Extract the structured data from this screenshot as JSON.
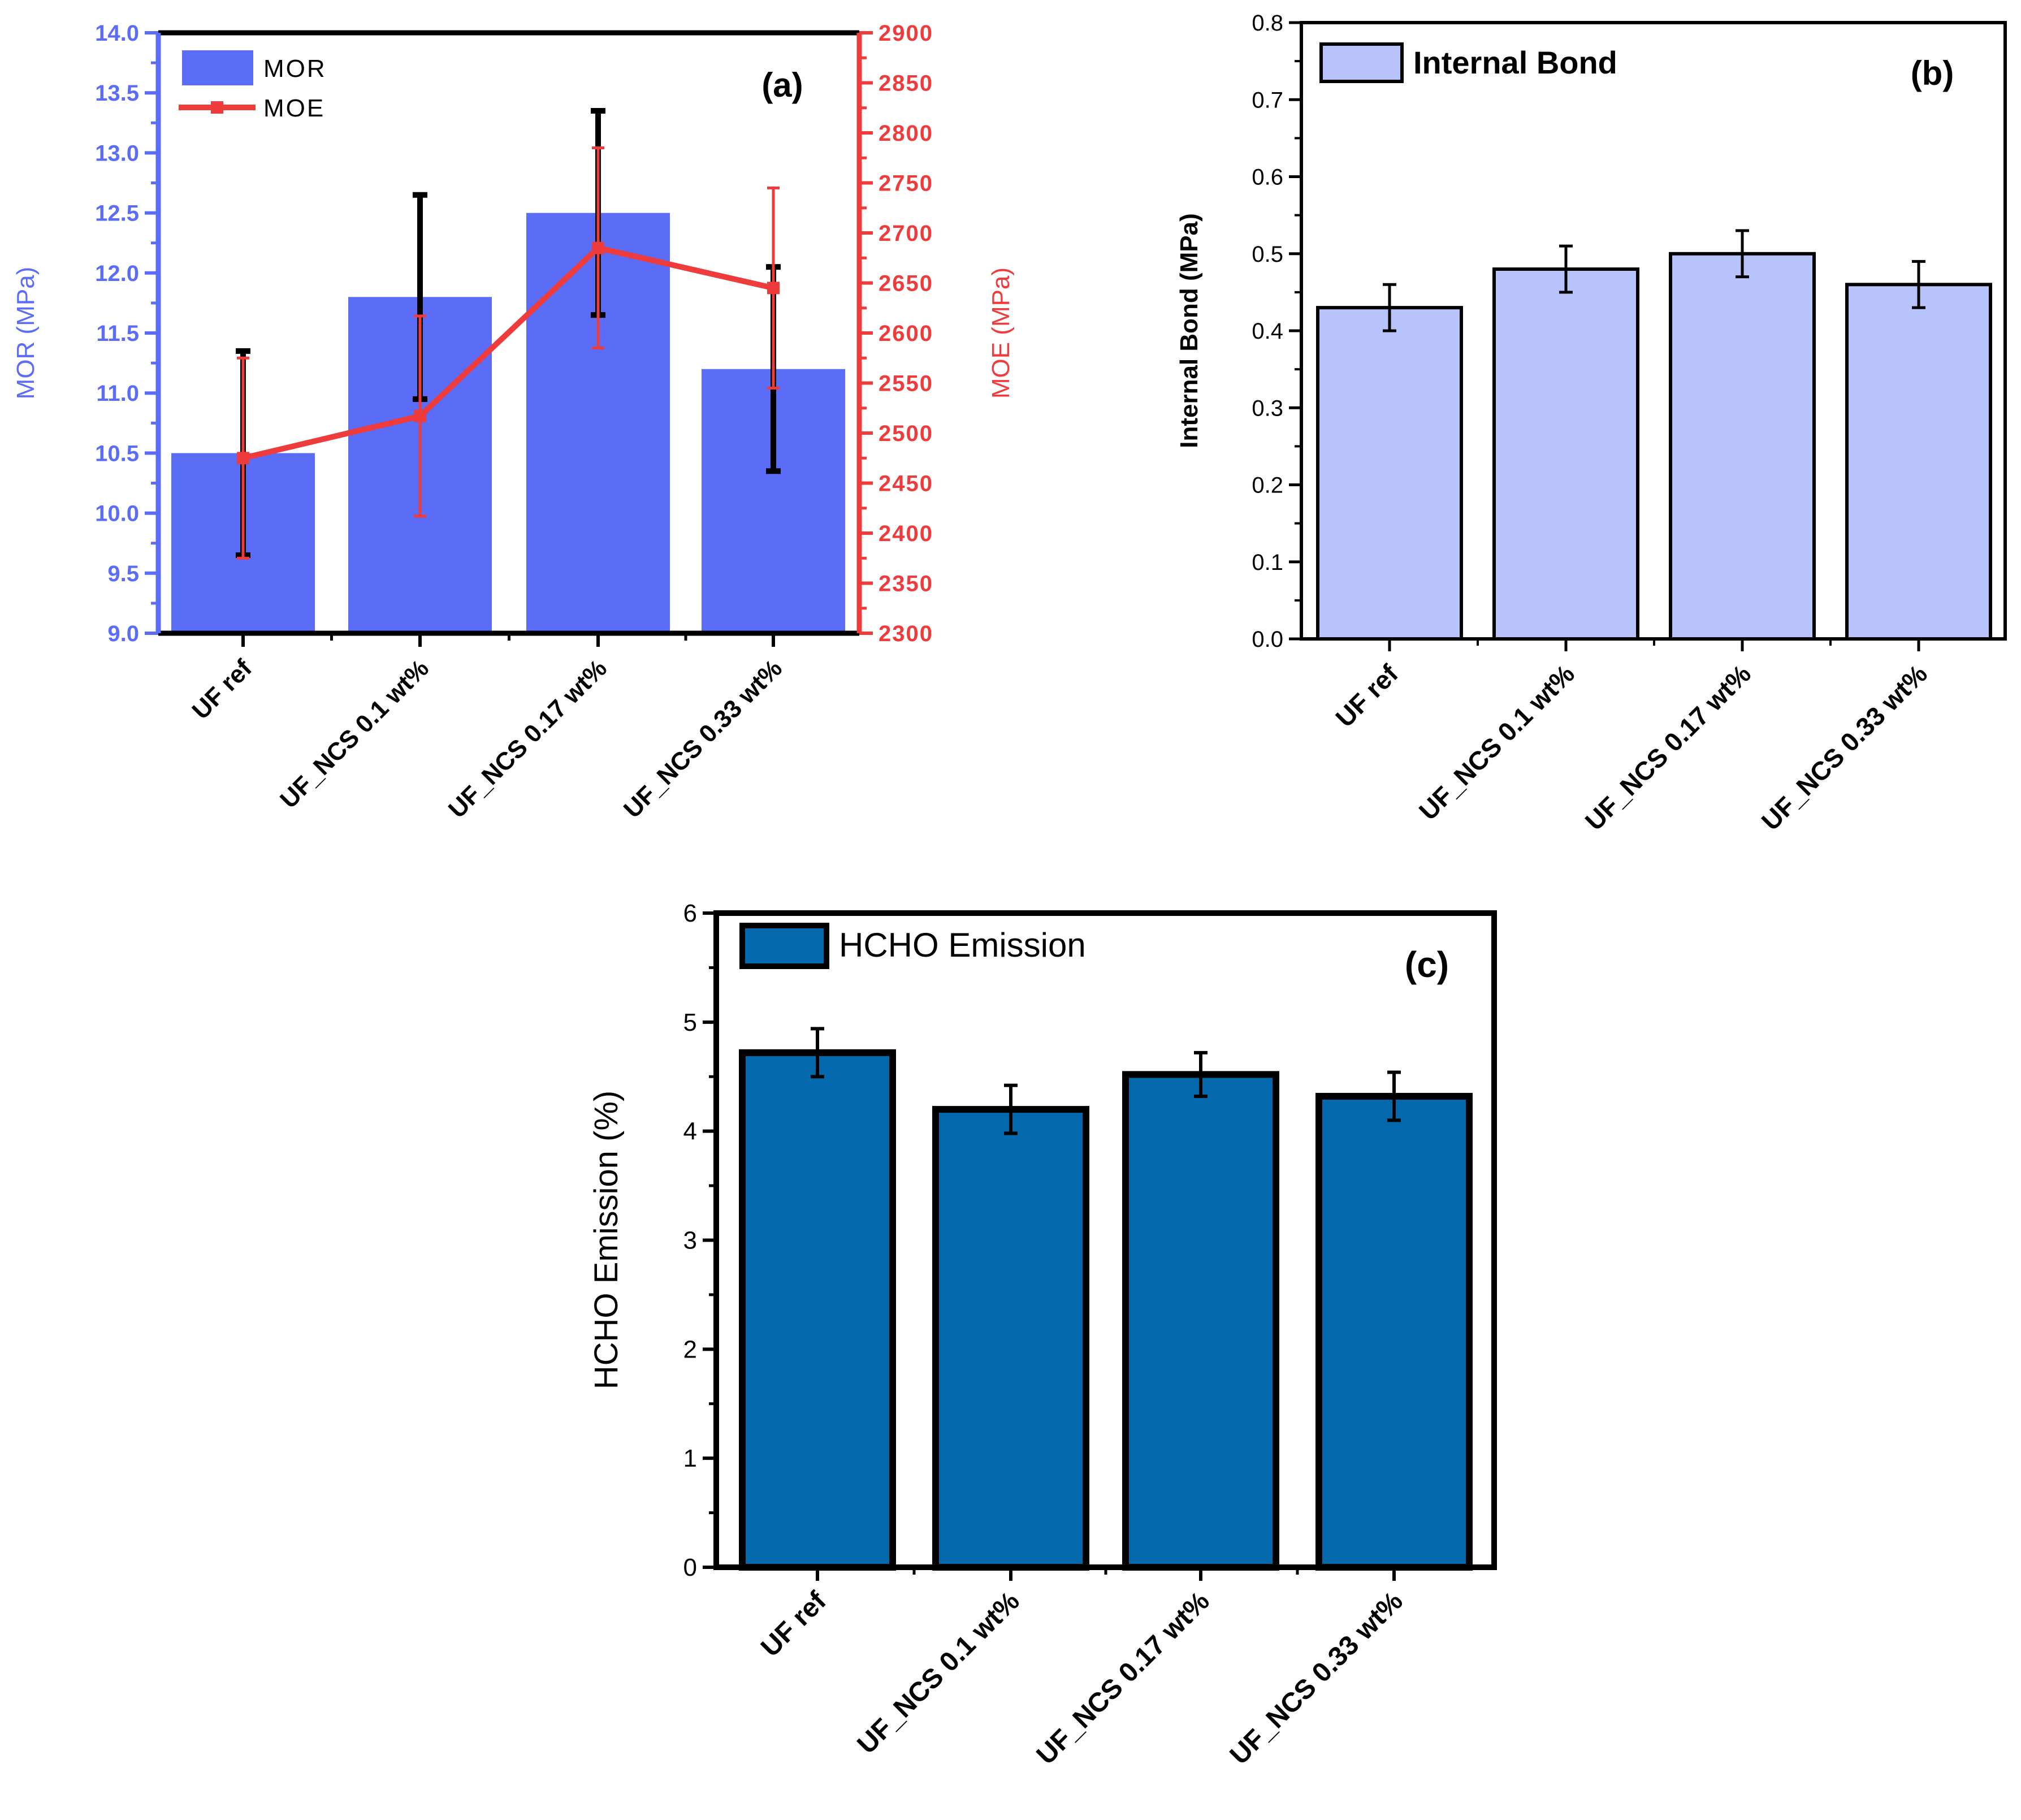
{
  "chart_data": [
    {
      "type": "bar+line",
      "panel_label": "(a)",
      "categories": [
        "UF ref",
        "UF_NCS 0.1 wt%",
        "UF_NCS 0.17 wt%",
        "UF_NCS 0.33 wt%"
      ],
      "left_axis": {
        "label": "MOR (MPa)",
        "ylim": [
          9.0,
          14.0
        ],
        "ticks": [
          "9.0",
          "9.5",
          "10.0",
          "10.5",
          "11.0",
          "11.5",
          "12.0",
          "12.5",
          "13.0",
          "13.5",
          "14.0"
        ]
      },
      "right_axis": {
        "label": "MOE (MPa)",
        "ylim": [
          2300,
          2900
        ],
        "ticks": [
          "2300",
          "2350",
          "2400",
          "2450",
          "2500",
          "2550",
          "2600",
          "2650",
          "2700",
          "2750",
          "2800",
          "2850",
          "2900"
        ]
      },
      "series": [
        {
          "name": "MOR",
          "kind": "bar",
          "axis": "left",
          "values": [
            10.5,
            11.8,
            12.5,
            11.2
          ],
          "errors": [
            0.85,
            0.85,
            0.85,
            0.85
          ]
        },
        {
          "name": "MOE",
          "kind": "line",
          "axis": "right",
          "values": [
            2475,
            2517,
            2685,
            2645
          ],
          "errors": [
            100,
            100,
            100,
            100
          ]
        }
      ],
      "legend": "top-left",
      "colors": {
        "bar": "#5b6cf6",
        "line": "#ee3b3b",
        "mor_error": "#000000",
        "left_axis": "#5b6cf6",
        "right_axis": "#ee3b3b"
      }
    },
    {
      "type": "bar",
      "panel_label": "(b)",
      "categories": [
        "UF ref",
        "UF_NCS 0.1 wt%",
        "UF_NCS 0.17 wt%",
        "UF_NCS 0.33 wt%"
      ],
      "ylabel": "Internal Bond (MPa)",
      "ylim": [
        0.0,
        0.8
      ],
      "ticks": [
        "0.0",
        "0.1",
        "0.2",
        "0.3",
        "0.4",
        "0.5",
        "0.6",
        "0.7",
        "0.8"
      ],
      "series": [
        {
          "name": "Internal Bond",
          "values": [
            0.43,
            0.48,
            0.5,
            0.46
          ],
          "errors": [
            0.03,
            0.03,
            0.03,
            0.03
          ]
        }
      ],
      "legend": "top-left",
      "colors": {
        "bar": "#b8c2fb",
        "edge": "#000000"
      }
    },
    {
      "type": "bar",
      "panel_label": "(c)",
      "categories": [
        "UF ref",
        "UF_NCS 0.1 wt%",
        "UF_NCS 0.17 wt%",
        "UF_NCS 0.33 wt%"
      ],
      "ylabel": "HCHO Emission (%)",
      "ylim": [
        0,
        6
      ],
      "ticks": [
        "0",
        "1",
        "2",
        "3",
        "4",
        "5",
        "6"
      ],
      "series": [
        {
          "name": "HCHO Emission",
          "values": [
            4.72,
            4.2,
            4.52,
            4.32
          ],
          "errors": [
            0.22,
            0.22,
            0.2,
            0.22
          ]
        }
      ],
      "legend": "top-left",
      "colors": {
        "bar": "#0369ac",
        "edge": "#000000"
      }
    }
  ]
}
